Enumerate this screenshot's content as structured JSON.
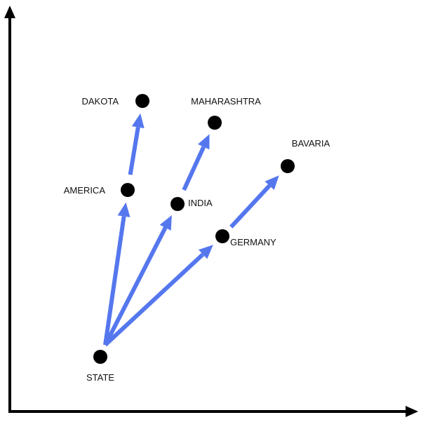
{
  "colors": {
    "axis": "#000000",
    "arrow": "#5577ee",
    "node": "#000000"
  },
  "nodes": [
    {
      "id": "state",
      "label": "STATE"
    },
    {
      "id": "america",
      "label": "AMERICA"
    },
    {
      "id": "dakota",
      "label": "DAKOTA"
    },
    {
      "id": "india",
      "label": "INDIA"
    },
    {
      "id": "maharashtra",
      "label": "MAHARASHTRA"
    },
    {
      "id": "germany",
      "label": "GERMANY"
    },
    {
      "id": "bavaria",
      "label": "BAVARIA"
    }
  ],
  "edges": [
    {
      "from": "state",
      "to": "america"
    },
    {
      "from": "state",
      "to": "india"
    },
    {
      "from": "state",
      "to": "germany"
    },
    {
      "from": "america",
      "to": "dakota"
    },
    {
      "from": "india",
      "to": "maharashtra"
    },
    {
      "from": "germany",
      "to": "bavaria"
    }
  ]
}
